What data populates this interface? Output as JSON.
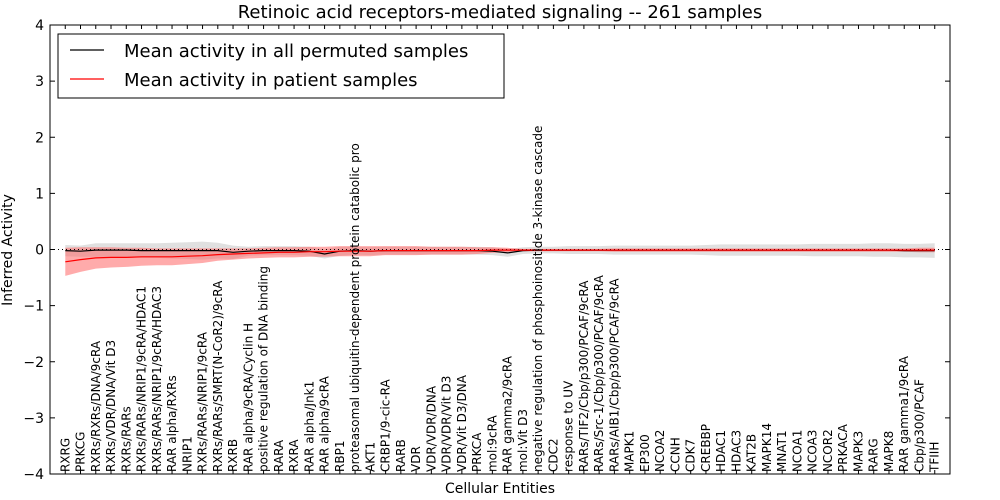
{
  "chart_data": {
    "type": "line",
    "title": "Retinoic acid receptors-mediated signaling -- 261 samples",
    "xlabel": "Cellular Entities",
    "ylabel": "Inferred Activity",
    "ylim": [
      -4,
      4
    ],
    "yticks": [
      "−4",
      "−3",
      "−2",
      "−1",
      "0",
      "1",
      "2",
      "3",
      "4"
    ],
    "legend_position": "top-left",
    "colors": {
      "permuted": "#000000",
      "patient": "#ff0000",
      "permuted_band": "#cccccc",
      "patient_band": "#ff6666"
    },
    "categories": [
      "RXRG",
      "PRKCG",
      "RXRs/RXRs/DNA/9cRA",
      "RXRs/VDR/DNA/Vit D3",
      "RXRs/RARs",
      "RXRs/RARs/NRIP1/9cRA/HDAC1",
      "RXRs/RARs/NRIP1/9cRA/HDAC3",
      "RAR alpha/RXRs",
      "NRIP1",
      "RXRs/RARs/NRIP1/9cRA",
      "RXRs/RARs/SMRT(N-CoR2)/9cRA",
      "RXRB",
      "RAR alpha/9cRA/Cyclin H",
      "positive regulation of DNA binding",
      "RARA",
      "RXRA",
      "RAR alpha/Jnk1",
      "RAR alpha/9cRA",
      "RBP1",
      "proteasomal ubiquitin-dependent protein catabolic pro",
      "AKT1",
      "CRBP1/9-cic-RA",
      "RARB",
      "VDR",
      "VDR/VDR/DNA",
      "VDR/VDR/Vit D3",
      "VDR/Vit D3/DNA",
      "PRKCA",
      "mol:9cRA",
      "RAR gamma2/9cRA",
      "mol:Vit D3",
      "negative regulation of phosphoinositide 3-kinase cascade",
      "CDC2",
      "response to UV",
      "RARs/TIF2/Cbp/p300/PCAF/9cRA",
      "RARs/Src-1/Cbp/p300/PCAF/9cRA",
      "RARs/AIB1/Cbp/p300/PCAF/9cRA",
      "MAPK1",
      "EP300",
      "NCOA2",
      "CCNH",
      "CDK7",
      "CREBBP",
      "HDAC1",
      "HDAC3",
      "KAT2B",
      "MAPK14",
      "MNAT1",
      "NCOA1",
      "NCOA3",
      "NCOR2",
      "PRKACA",
      "MAPK3",
      "RARG",
      "MAPK8",
      "RAR gamma1/9cRA",
      "Cbp/p300/PCAF",
      "TFIIH"
    ],
    "series": [
      {
        "name": "Mean activity in all permuted samples",
        "key": "permuted",
        "values": [
          -0.02,
          -0.03,
          -0.01,
          -0.01,
          -0.01,
          -0.02,
          -0.02,
          -0.02,
          -0.02,
          -0.02,
          -0.02,
          -0.05,
          -0.03,
          -0.02,
          -0.02,
          -0.02,
          -0.03,
          -0.08,
          -0.03,
          -0.02,
          -0.03,
          -0.02,
          -0.02,
          -0.02,
          -0.02,
          -0.02,
          -0.02,
          -0.02,
          -0.03,
          -0.06,
          -0.02,
          -0.01,
          -0.01,
          -0.01,
          -0.01,
          -0.01,
          -0.01,
          -0.01,
          -0.01,
          -0.01,
          -0.01,
          -0.01,
          -0.01,
          -0.01,
          -0.01,
          -0.01,
          -0.01,
          -0.01,
          -0.01,
          -0.01,
          -0.01,
          -0.01,
          -0.01,
          -0.01,
          -0.01,
          -0.02,
          -0.02,
          -0.02
        ],
        "band": [
          0.1,
          0.1,
          0.12,
          0.12,
          0.12,
          0.13,
          0.13,
          0.14,
          0.15,
          0.16,
          0.14,
          0.12,
          0.08,
          0.08,
          0.08,
          0.08,
          0.08,
          0.08,
          0.08,
          0.07,
          0.07,
          0.07,
          0.07,
          0.07,
          0.07,
          0.07,
          0.07,
          0.07,
          0.07,
          0.07,
          0.06,
          0.06,
          0.06,
          0.07,
          0.07,
          0.07,
          0.08,
          0.08,
          0.08,
          0.08,
          0.08,
          0.08,
          0.09,
          0.1,
          0.1,
          0.1,
          0.1,
          0.1,
          0.1,
          0.11,
          0.11,
          0.11,
          0.11,
          0.12,
          0.12,
          0.12,
          0.12,
          0.13
        ]
      },
      {
        "name": "Mean activity in patient samples",
        "key": "patient",
        "values": [
          -0.22,
          -0.18,
          -0.15,
          -0.14,
          -0.14,
          -0.13,
          -0.13,
          -0.13,
          -0.12,
          -0.11,
          -0.09,
          -0.08,
          -0.07,
          -0.06,
          -0.05,
          -0.05,
          -0.04,
          -0.04,
          -0.03,
          -0.03,
          -0.03,
          -0.02,
          -0.02,
          -0.02,
          -0.02,
          -0.02,
          -0.02,
          -0.02,
          -0.01,
          -0.01,
          -0.01,
          -0.01,
          -0.01,
          -0.01,
          -0.01,
          -0.01,
          -0.01,
          -0.01,
          -0.01,
          -0.01,
          -0.01,
          -0.01,
          -0.01,
          -0.01,
          -0.01,
          -0.01,
          -0.01,
          -0.01,
          -0.01,
          -0.01,
          -0.01,
          -0.01,
          -0.01,
          -0.01,
          -0.01,
          -0.01,
          -0.01,
          -0.01
        ],
        "band": [
          0.25,
          0.22,
          0.19,
          0.18,
          0.17,
          0.16,
          0.15,
          0.15,
          0.14,
          0.13,
          0.11,
          0.1,
          0.09,
          0.09,
          0.09,
          0.09,
          0.09,
          0.09,
          0.09,
          0.09,
          0.09,
          0.08,
          0.08,
          0.08,
          0.07,
          0.07,
          0.07,
          0.06,
          0.05,
          0.04,
          0.02,
          0.02,
          0.02,
          0.02,
          0.02,
          0.02,
          0.03,
          0.03,
          0.03,
          0.03,
          0.03,
          0.03,
          0.03,
          0.03,
          0.03,
          0.03,
          0.03,
          0.03,
          0.03,
          0.03,
          0.03,
          0.03,
          0.03,
          0.03,
          0.03,
          0.03,
          0.04,
          0.04
        ]
      }
    ]
  }
}
